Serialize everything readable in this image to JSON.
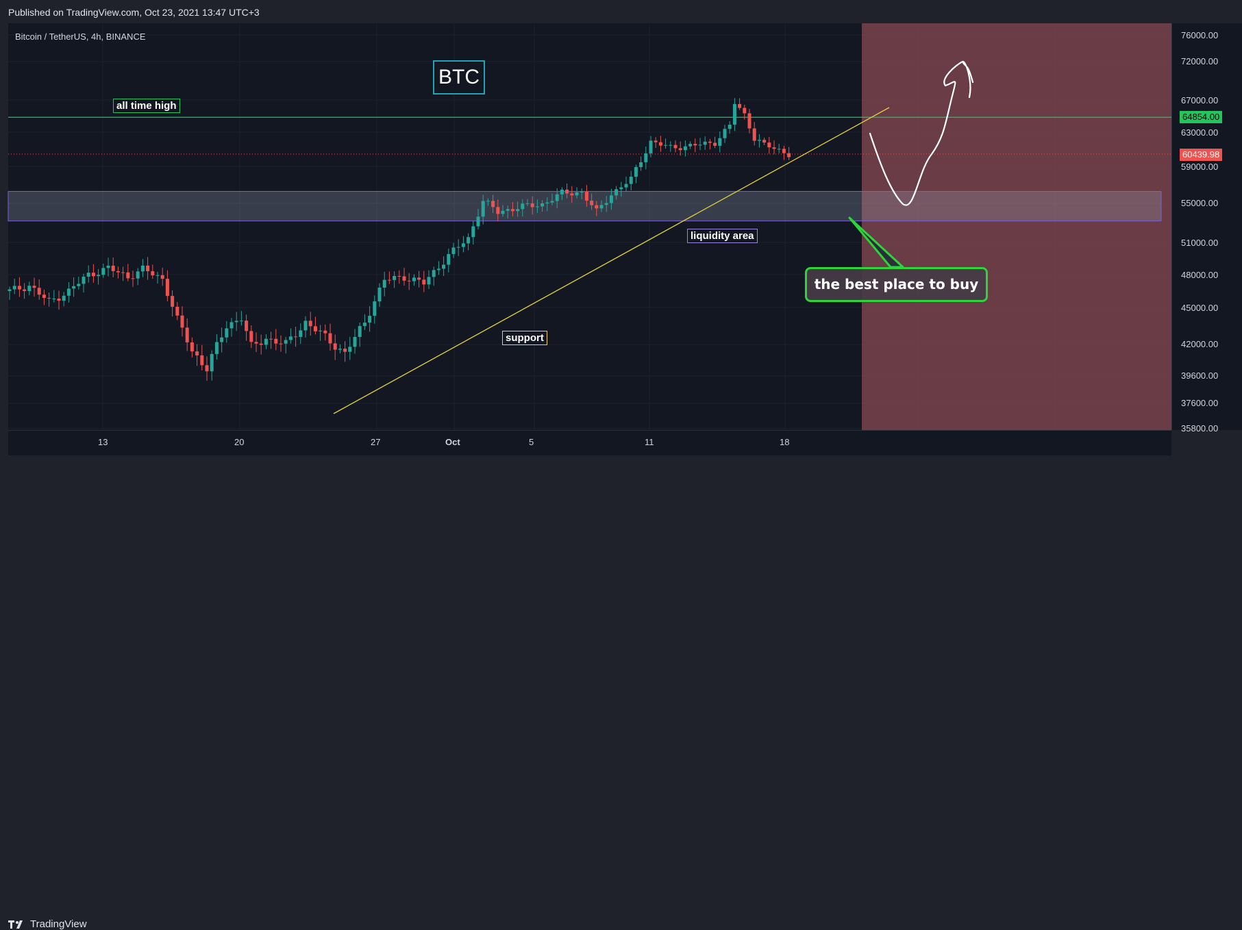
{
  "header": {
    "published": "Published on TradingView.com, Oct 23, 2021 13:47 UTC+3"
  },
  "symbol": {
    "title": "Bitcoin / TetherUS, 4h, BINANCE"
  },
  "annotations": {
    "btc": "BTC",
    "all_time_high": "all time high",
    "support": "support",
    "liquidity_area": "liquidity area",
    "best_place": "the best place to buy"
  },
  "price_axis": {
    "ticks": [
      "76000.00",
      "72000.00",
      "67000.00",
      "63000.00",
      "59000.00",
      "55000.00",
      "51000.00",
      "48000.00",
      "45000.00",
      "42000.00",
      "39600.00",
      "37600.00",
      "35800.00"
    ],
    "ath_tag": "64854.00",
    "last_tag": "60439.98"
  },
  "time_axis": {
    "ticks": [
      "13",
      "20",
      "27",
      "Oct",
      "5",
      "11",
      "18"
    ]
  },
  "footer": {
    "brand": "TradingView"
  },
  "colors": {
    "up": "#26a69a",
    "down": "#ef5350",
    "ath_line": "#22c55e",
    "support_line": "#e8d43a",
    "zone": "#7b61d6",
    "forecast_bg": "#8a4b55"
  },
  "chart_data": {
    "type": "candlestick",
    "symbol": "Bitcoin / TetherUS",
    "timeframe": "4h",
    "exchange": "BINANCE",
    "ylim": [
      35800,
      76000
    ],
    "x_ticks": [
      "13",
      "20",
      "27",
      "Oct",
      "5",
      "11",
      "18"
    ],
    "key_levels": {
      "all_time_high": 64854.0,
      "last_price": 60439.98
    },
    "liquidity_zone": [
      53200,
      56300
    ],
    "path_points": [
      [
        0,
        46500
      ],
      [
        4,
        47000
      ],
      [
        8,
        45500
      ],
      [
        12,
        46500
      ],
      [
        16,
        48000
      ],
      [
        20,
        48600
      ],
      [
        24,
        47800
      ],
      [
        27,
        48500
      ],
      [
        31,
        47600
      ],
      [
        34,
        44000
      ],
      [
        37,
        41500
      ],
      [
        40,
        40200
      ],
      [
        44,
        43500
      ],
      [
        47,
        44200
      ],
      [
        49,
        41800
      ],
      [
        52,
        42500
      ],
      [
        56,
        42000
      ],
      [
        60,
        43800
      ],
      [
        64,
        42600
      ],
      [
        68,
        41300
      ],
      [
        72,
        43800
      ],
      [
        76,
        47500
      ],
      [
        80,
        47800
      ],
      [
        84,
        47200
      ],
      [
        89,
        49800
      ],
      [
        93,
        51400
      ],
      [
        96,
        55300
      ],
      [
        99,
        54100
      ],
      [
        103,
        54600
      ],
      [
        108,
        54900
      ],
      [
        112,
        56100
      ],
      [
        116,
        56200
      ],
      [
        119,
        54100
      ],
      [
        122,
        56000
      ],
      [
        126,
        57600
      ],
      [
        130,
        61900
      ],
      [
        134,
        61200
      ],
      [
        138,
        61400
      ],
      [
        143,
        61800
      ],
      [
        146,
        63800
      ],
      [
        147,
        66600
      ],
      [
        149,
        65200
      ],
      [
        151,
        62300
      ],
      [
        153,
        61500
      ],
      [
        156,
        60900
      ],
      [
        158,
        60440
      ]
    ]
  }
}
